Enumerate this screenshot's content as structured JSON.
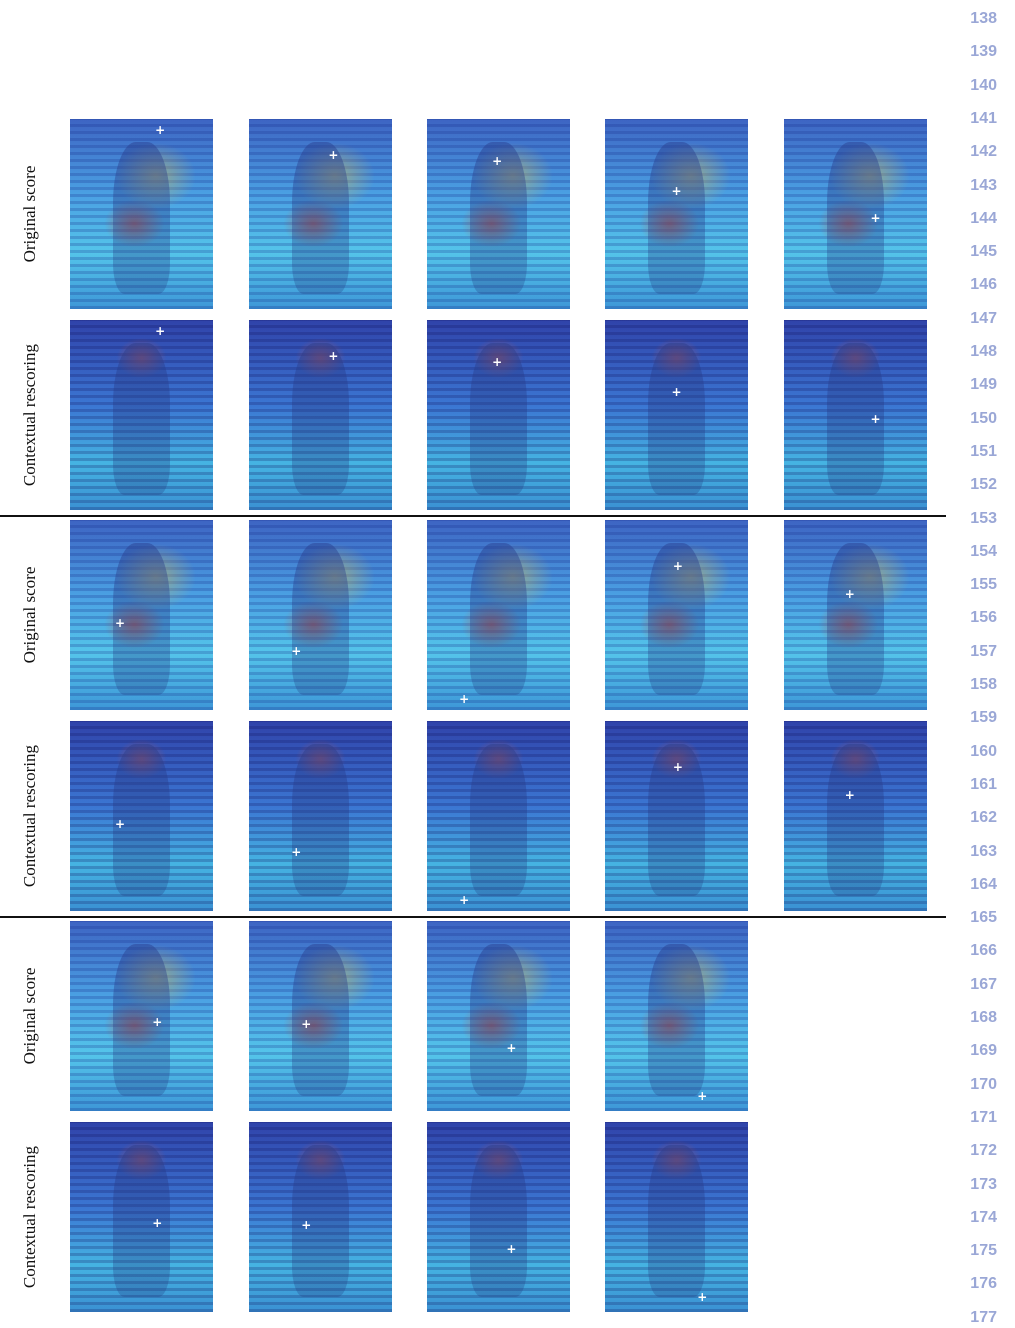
{
  "row_labels": [
    "Original score",
    "Contextual rescoring",
    "Original score",
    "Contextual rescoring",
    "Original score",
    "Contextual rescoring"
  ],
  "line_numbers": [
    "138",
    "139",
    "140",
    "141",
    "142",
    "143",
    "144",
    "145",
    "146",
    "147",
    "148",
    "149",
    "150",
    "151",
    "152",
    "153",
    "154",
    "155",
    "156",
    "157",
    "158",
    "159",
    "160",
    "161",
    "162",
    "163",
    "164",
    "165",
    "166",
    "167",
    "168",
    "169",
    "170",
    "171",
    "172",
    "173",
    "174",
    "175",
    "176",
    "177"
  ],
  "panel_counts": [
    5,
    5,
    5,
    5,
    4,
    4
  ],
  "colors": {
    "line_number": "#9aa7d6",
    "separator": "#111111",
    "keypoint_marker": "#ffffff"
  },
  "icons": {
    "keypoint": "plus-marker-icon"
  }
}
